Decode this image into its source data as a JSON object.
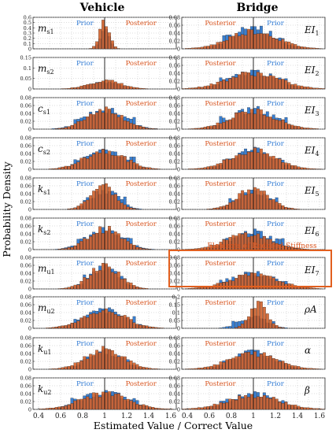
{
  "figure": {
    "ylabel": "Probability Density",
    "xlabel": "Estimated Value / Correct Value",
    "columns": [
      "Vehicle",
      "Bridge"
    ],
    "reduced_stiffness_note": "Elements of Reduced Stiffness",
    "colors": {
      "posterior": "#d4622a",
      "prior": "#3a7fd0",
      "posterior_text": "#d9541e",
      "prior_text": "#2f7ad4",
      "highlight_box": "#e25f1e"
    }
  },
  "chart_data": [
    {
      "type": "bar",
      "panel": "Vehicle",
      "param": "m",
      "sub": "s1",
      "prior_label": "Prior",
      "posterior_label": "Posterior",
      "xlim": [
        0.35,
        1.65
      ],
      "ylim": [
        0,
        0.6
      ],
      "yticks": [
        "0",
        "0.1",
        "0.2",
        "0.3",
        "0.4",
        "0.5",
        "0.6"
      ],
      "xticks": [],
      "series": [
        {
          "name": "Prior",
          "center": 1.0,
          "width": 0.04,
          "peak": 0.4
        },
        {
          "name": "Posterior",
          "center": 1.0,
          "width": 0.045,
          "peak": 0.5
        }
      ]
    },
    {
      "type": "bar",
      "panel": "Vehicle",
      "param": "m",
      "sub": "s2",
      "prior_label": "Prior",
      "posterior_label": "Posterior",
      "xlim": [
        0.35,
        1.65
      ],
      "ylim": [
        0,
        0.15
      ],
      "yticks": [
        "0",
        "0.05",
        "0.1",
        "0.15"
      ],
      "xticks": [],
      "series": [
        {
          "name": "Prior",
          "center": 1.0,
          "width": 0.13,
          "peak": 0.035
        },
        {
          "name": "Posterior",
          "center": 1.0,
          "width": 0.15,
          "peak": 0.04
        }
      ]
    },
    {
      "type": "bar",
      "panel": "Vehicle",
      "param": "c",
      "sub": "s1",
      "prior_label": "Prior",
      "posterior_label": "Posterior",
      "xlim": [
        0.35,
        1.65
      ],
      "ylim": [
        0,
        0.08
      ],
      "yticks": [
        "0",
        "0.02",
        "0.04",
        "0.06",
        "0.08"
      ],
      "xticks": [],
      "series": [
        {
          "name": "Prior",
          "center": 1.0,
          "width": 0.17,
          "peak": 0.05
        },
        {
          "name": "Posterior",
          "center": 1.0,
          "width": 0.16,
          "peak": 0.052
        }
      ]
    },
    {
      "type": "bar",
      "panel": "Vehicle",
      "param": "c",
      "sub": "s2",
      "prior_label": "Prior",
      "posterior_label": "Posterior",
      "xlim": [
        0.35,
        1.65
      ],
      "ylim": [
        0,
        0.08
      ],
      "yticks": [
        "0",
        "0.02",
        "0.04",
        "0.06",
        "0.08"
      ],
      "xticks": [],
      "series": [
        {
          "name": "Prior",
          "center": 1.0,
          "width": 0.17,
          "peak": 0.05
        },
        {
          "name": "Posterior",
          "center": 1.0,
          "width": 0.18,
          "peak": 0.048
        }
      ]
    },
    {
      "type": "bar",
      "panel": "Vehicle",
      "param": "k",
      "sub": "s1",
      "prior_label": "Prior",
      "posterior_label": "Posterior",
      "xlim": [
        0.35,
        1.65
      ],
      "ylim": [
        0,
        0.08
      ],
      "yticks": [
        "0",
        "0.02",
        "0.04",
        "0.06",
        "0.08"
      ],
      "xticks": [],
      "series": [
        {
          "name": "Prior",
          "center": 1.0,
          "width": 0.12,
          "peak": 0.05
        },
        {
          "name": "Posterior",
          "center": 0.98,
          "width": 0.11,
          "peak": 0.062
        }
      ]
    },
    {
      "type": "bar",
      "panel": "Vehicle",
      "param": "k",
      "sub": "s2",
      "prior_label": "Prior",
      "posterior_label": "Posterior",
      "xlim": [
        0.35,
        1.65
      ],
      "ylim": [
        0,
        0.08
      ],
      "yticks": [
        "0",
        "0.02",
        "0.04",
        "0.06",
        "0.08"
      ],
      "xticks": [],
      "series": [
        {
          "name": "Prior",
          "center": 1.0,
          "width": 0.16,
          "peak": 0.048
        },
        {
          "name": "Posterior",
          "center": 1.0,
          "width": 0.15,
          "peak": 0.052
        }
      ]
    },
    {
      "type": "bar",
      "panel": "Vehicle",
      "param": "m",
      "sub": "u1",
      "prior_label": "Prior",
      "posterior_label": "Posterior",
      "xlim": [
        0.35,
        1.65
      ],
      "ylim": [
        0,
        0.08
      ],
      "yticks": [
        "0",
        "0.02",
        "0.04",
        "0.06",
        "0.08"
      ],
      "xticks": [],
      "series": [
        {
          "name": "Prior",
          "center": 1.0,
          "width": 0.13,
          "peak": 0.055
        },
        {
          "name": "Posterior",
          "center": 1.0,
          "width": 0.14,
          "peak": 0.058
        }
      ]
    },
    {
      "type": "bar",
      "panel": "Vehicle",
      "param": "m",
      "sub": "u2",
      "prior_label": "Prior",
      "posterior_label": "Posterior",
      "xlim": [
        0.35,
        1.65
      ],
      "ylim": [
        0,
        0.08
      ],
      "yticks": [
        "0",
        "0.02",
        "0.04",
        "0.06",
        "0.08"
      ],
      "xticks": [],
      "series": [
        {
          "name": "Prior",
          "center": 1.0,
          "width": 0.18,
          "peak": 0.046
        },
        {
          "name": "Posterior",
          "center": 1.0,
          "width": 0.19,
          "peak": 0.045
        }
      ]
    },
    {
      "type": "bar",
      "panel": "Vehicle",
      "param": "k",
      "sub": "u1",
      "prior_label": "Prior",
      "posterior_label": "Posterior",
      "xlim": [
        0.35,
        1.65
      ],
      "ylim": [
        0,
        0.08
      ],
      "yticks": [
        "0",
        "0.02",
        "0.04",
        "0.06",
        "0.08"
      ],
      "xticks": [],
      "series": [
        {
          "name": "Prior",
          "center": 1.0,
          "width": 0.15,
          "peak": 0.046
        },
        {
          "name": "Posterior",
          "center": 1.0,
          "width": 0.17,
          "peak": 0.05
        }
      ]
    },
    {
      "type": "bar",
      "panel": "Vehicle",
      "param": "k",
      "sub": "u2",
      "prior_label": "Prior",
      "posterior_label": "Posterior",
      "xlim": [
        0.35,
        1.65
      ],
      "ylim": [
        0,
        0.08
      ],
      "yticks": [
        "0",
        "0.02",
        "0.04",
        "0.06",
        "0.08"
      ],
      "xticks": [
        "0.4",
        "0.6",
        "0.8",
        "1",
        "1.2",
        "1.4",
        "1.6"
      ],
      "series": [
        {
          "name": "Prior",
          "center": 1.0,
          "width": 0.2,
          "peak": 0.044
        },
        {
          "name": "Posterior",
          "center": 1.0,
          "width": 0.22,
          "peak": 0.04
        }
      ]
    },
    {
      "type": "bar",
      "panel": "Bridge",
      "param": "EI",
      "sub": "1",
      "prior_label": "Prior",
      "posterior_label": "Posterior",
      "xlim": [
        0.35,
        1.65
      ],
      "ylim": [
        0,
        0.08
      ],
      "yticks": [
        "0",
        "0.02",
        "0.04",
        "0.06",
        "0.08"
      ],
      "xticks": [],
      "series": [
        {
          "name": "Prior",
          "center": 1.0,
          "width": 0.18,
          "peak": 0.055
        },
        {
          "name": "Posterior",
          "center": 1.0,
          "width": 0.22,
          "peak": 0.045
        }
      ]
    },
    {
      "type": "bar",
      "panel": "Bridge",
      "param": "EI",
      "sub": "2",
      "prior_label": "Prior",
      "posterior_label": "Posterior",
      "xlim": [
        0.35,
        1.65
      ],
      "ylim": [
        0,
        0.08
      ],
      "yticks": [
        "0",
        "0.02",
        "0.04",
        "0.06",
        "0.08"
      ],
      "xticks": [],
      "series": [
        {
          "name": "Prior",
          "center": 1.0,
          "width": 0.2,
          "peak": 0.044
        },
        {
          "name": "Posterior",
          "center": 1.0,
          "width": 0.24,
          "peak": 0.04
        }
      ]
    },
    {
      "type": "bar",
      "panel": "Bridge",
      "param": "EI",
      "sub": "3",
      "prior_label": "Prior",
      "posterior_label": "Posterior",
      "xlim": [
        0.35,
        1.65
      ],
      "ylim": [
        0,
        0.08
      ],
      "yticks": [
        "0",
        "0.02",
        "0.04",
        "0.06",
        "0.08"
      ],
      "xticks": [],
      "series": [
        {
          "name": "Prior",
          "center": 1.0,
          "width": 0.19,
          "peak": 0.05
        },
        {
          "name": "Posterior",
          "center": 1.0,
          "width": 0.21,
          "peak": 0.046
        }
      ]
    },
    {
      "type": "bar",
      "panel": "Bridge",
      "param": "EI",
      "sub": "4",
      "prior_label": "Prior",
      "posterior_label": "Posterior",
      "xlim": [
        0.35,
        1.65
      ],
      "ylim": [
        0,
        0.08
      ],
      "yticks": [
        "0",
        "0.02",
        "0.04",
        "0.06",
        "0.08"
      ],
      "xticks": [],
      "series": [
        {
          "name": "Prior",
          "center": 1.0,
          "width": 0.18,
          "peak": 0.05
        },
        {
          "name": "Posterior",
          "center": 1.0,
          "width": 0.21,
          "peak": 0.046
        }
      ]
    },
    {
      "type": "bar",
      "panel": "Bridge",
      "param": "EI",
      "sub": "5",
      "prior_label": "Prior",
      "posterior_label": "Posterior",
      "xlim": [
        0.35,
        1.65
      ],
      "ylim": [
        0,
        0.08
      ],
      "yticks": [
        "0",
        "0.02",
        "0.04",
        "0.06",
        "0.08"
      ],
      "xticks": [],
      "series": [
        {
          "name": "Prior",
          "center": 1.0,
          "width": 0.14,
          "peak": 0.048
        },
        {
          "name": "Posterior",
          "center": 1.0,
          "width": 0.15,
          "peak": 0.05
        }
      ]
    },
    {
      "type": "bar",
      "panel": "Bridge",
      "param": "EI",
      "sub": "6",
      "prior_label": "Prior",
      "posterior_label": "Posterior",
      "xlim": [
        0.35,
        1.65
      ],
      "ylim": [
        0,
        0.08
      ],
      "yticks": [
        "0",
        "0.02",
        "0.04",
        "0.06",
        "0.08"
      ],
      "xticks": [],
      "series": [
        {
          "name": "Prior",
          "center": 1.0,
          "width": 0.17,
          "peak": 0.046
        },
        {
          "name": "Posterior",
          "center": 0.95,
          "width": 0.2,
          "peak": 0.04
        }
      ]
    },
    {
      "type": "bar",
      "panel": "Bridge",
      "param": "EI",
      "sub": "7",
      "prior_label": "Prior",
      "posterior_label": "Posterior",
      "xlim": [
        0.35,
        1.65
      ],
      "ylim": [
        0,
        0.08
      ],
      "yticks": [
        "0",
        "0.02",
        "0.04",
        "0.06",
        "0.08"
      ],
      "xticks": [],
      "series": [
        {
          "name": "Prior",
          "center": 1.0,
          "width": 0.2,
          "peak": 0.04
        },
        {
          "name": "Posterior",
          "center": 1.0,
          "width": 0.23,
          "peak": 0.035
        }
      ]
    },
    {
      "type": "bar",
      "panel": "Bridge",
      "param": "ρA",
      "sub": "",
      "prior_label": "Prior",
      "posterior_label": "Posterior",
      "xlim": [
        0.35,
        1.65
      ],
      "ylim": [
        0,
        0.2
      ],
      "yticks": [
        "0",
        "0.05",
        "0.1",
        "0.15",
        "0.2"
      ],
      "xticks": [],
      "series": [
        {
          "name": "Prior",
          "center": 1.0,
          "width": 0.12,
          "peak": 0.07
        },
        {
          "name": "Posterior",
          "center": 1.05,
          "width": 0.08,
          "peak": 0.15
        }
      ]
    },
    {
      "type": "bar",
      "panel": "Bridge",
      "param": "α",
      "sub": "",
      "prior_label": "Prior",
      "posterior_label": "Posterior",
      "xlim": [
        0.35,
        1.65
      ],
      "ylim": [
        0,
        0.08
      ],
      "yticks": [
        "0",
        "0.02",
        "0.04",
        "0.06",
        "0.08"
      ],
      "xticks": [],
      "series": [
        {
          "name": "Prior",
          "center": 1.0,
          "width": 0.18,
          "peak": 0.045
        },
        {
          "name": "Posterior",
          "center": 1.0,
          "width": 0.22,
          "peak": 0.04
        }
      ]
    },
    {
      "type": "bar",
      "panel": "Bridge",
      "param": "β",
      "sub": "",
      "prior_label": "Prior",
      "posterior_label": "Posterior",
      "xlim": [
        0.35,
        1.65
      ],
      "ylim": [
        0,
        0.08
      ],
      "yticks": [
        "0",
        "0.02",
        "0.04",
        "0.06",
        "0.08"
      ],
      "xticks": [
        "0.4",
        "0.6",
        "0.8",
        "1",
        "1.2",
        "1.4",
        "1.6"
      ],
      "series": [
        {
          "name": "Prior",
          "center": 1.0,
          "width": 0.2,
          "peak": 0.04
        },
        {
          "name": "Posterior",
          "center": 1.0,
          "width": 0.24,
          "peak": 0.036
        }
      ]
    }
  ]
}
